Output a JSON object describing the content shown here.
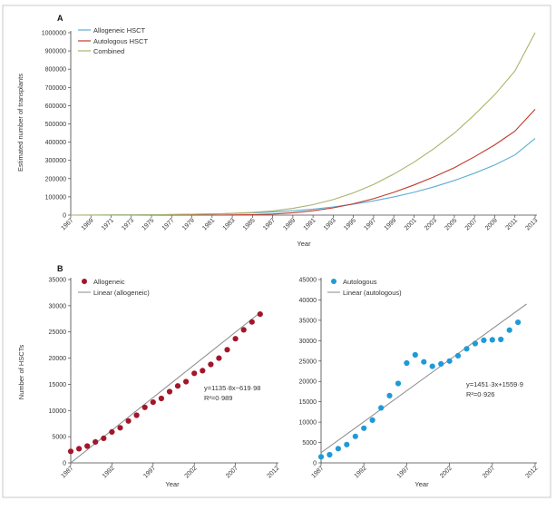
{
  "colors": {
    "allogeneic_line": "#5aaed3",
    "autologous_line": "#c0392b",
    "combined_line": "#a8b36a",
    "allo_points": "#a3162a",
    "auto_points": "#1e9bd7",
    "fit_line": "#888888",
    "axis": "#444444"
  },
  "chart_data": [
    {
      "id": "A",
      "type": "line",
      "panel_label": "A",
      "xlabel": "Year",
      "ylabel": "Estimated number of transplants",
      "xlim": [
        1967,
        2013
      ],
      "ylim": [
        0,
        1000000
      ],
      "xticks": [
        1967,
        1969,
        1971,
        1973,
        1975,
        1977,
        1979,
        1981,
        1983,
        1985,
        1987,
        1989,
        1991,
        1993,
        1995,
        1997,
        1999,
        2001,
        2003,
        2005,
        2007,
        2009,
        2011,
        2013
      ],
      "yticks": [
        0,
        100000,
        200000,
        300000,
        400000,
        500000,
        600000,
        700000,
        800000,
        900000,
        1000000
      ],
      "ytick_labels": [
        "0",
        "100000",
        "200000",
        "300000",
        "400000",
        "500000",
        "600000",
        "700000",
        "800000",
        "900000",
        "1000000"
      ],
      "legend_position": "top-left",
      "x": [
        1967,
        1970,
        1973,
        1976,
        1979,
        1982,
        1985,
        1987,
        1989,
        1991,
        1993,
        1995,
        1997,
        1999,
        2001,
        2003,
        2005,
        2007,
        2009,
        2011,
        2013
      ],
      "series": [
        {
          "name": "Allogeneic HSCT",
          "color_key": "allogeneic_line",
          "values": [
            0,
            500,
            1200,
            2500,
            4500,
            7500,
            12000,
            17000,
            24000,
            33000,
            45000,
            60000,
            78000,
            100000,
            125000,
            155000,
            190000,
            230000,
            275000,
            330000,
            420000
          ]
        },
        {
          "name": "Autologous HSCT",
          "color_key": "autologous_line",
          "values": [
            0,
            0,
            0,
            0,
            100,
            600,
            2500,
            6000,
            13000,
            24000,
            40000,
            62000,
            90000,
            125000,
            165000,
            210000,
            260000,
            320000,
            385000,
            460000,
            580000
          ]
        },
        {
          "name": "Combined",
          "color_key": "combined_line",
          "values": [
            0,
            500,
            1200,
            2500,
            4600,
            8100,
            14500,
            23000,
            37000,
            57000,
            85000,
            122000,
            168000,
            225000,
            290000,
            365000,
            450000,
            550000,
            660000,
            790000,
            1000000
          ]
        }
      ]
    },
    {
      "id": "B-left",
      "type": "scatter",
      "panel_label": "B",
      "xlabel": "Year",
      "ylabel": "Number of HSCTs",
      "xlim": [
        1987,
        2012
      ],
      "ylim": [
        0,
        35000
      ],
      "xticks": [
        1987,
        1992,
        1997,
        2002,
        2007,
        2012
      ],
      "yticks": [
        0,
        5000,
        10000,
        15000,
        20000,
        25000,
        30000,
        35000
      ],
      "ytick_labels": [
        "0",
        "5000",
        "10000",
        "15000",
        "20000",
        "25000",
        "30000",
        "35000"
      ],
      "legend_position": "top-left",
      "series": [
        {
          "name": "Allogeneic",
          "kind": "points",
          "color_key": "allo_points",
          "x": [
            1987,
            1988,
            1989,
            1990,
            1991,
            1992,
            1993,
            1994,
            1995,
            1996,
            1997,
            1998,
            1999,
            2000,
            2001,
            2002,
            2003,
            2004,
            2005,
            2006,
            2007,
            2008,
            2009,
            2010
          ],
          "y": [
            2200,
            2700,
            3200,
            4000,
            4700,
            5900,
            6700,
            8000,
            9100,
            10600,
            11600,
            12300,
            13600,
            14700,
            15500,
            17100,
            17600,
            18800,
            20000,
            21600,
            23700,
            25400,
            26900,
            28400
          ]
        },
        {
          "name": "Linear (allogeneic)",
          "kind": "line",
          "color_key": "fit_line",
          "x": [
            1987,
            2010
          ],
          "y": [
            0,
            28700
          ]
        }
      ],
      "equation": "y=1135·8x−619·98",
      "r_squared": "R²=0·989"
    },
    {
      "id": "B-right",
      "type": "scatter",
      "panel_label": "",
      "xlabel": "Year",
      "ylabel": "",
      "xlim": [
        1987,
        2012
      ],
      "ylim": [
        0,
        45000
      ],
      "xticks": [
        1987,
        1992,
        1997,
        2002,
        2007,
        2012
      ],
      "yticks": [
        0,
        5000,
        10000,
        15000,
        20000,
        25000,
        30000,
        35000,
        40000,
        45000
      ],
      "ytick_labels": [
        "0",
        "5000",
        "10000",
        "15000",
        "20000",
        "25000",
        "30000",
        "35000",
        "40000",
        "45000"
      ],
      "legend_position": "top-left",
      "series": [
        {
          "name": "Autologous",
          "kind": "points",
          "color_key": "auto_points",
          "x": [
            1987,
            1988,
            1989,
            1990,
            1991,
            1992,
            1993,
            1994,
            1995,
            1996,
            1997,
            1998,
            1999,
            2000,
            2001,
            2002,
            2003,
            2004,
            2005,
            2006,
            2007,
            2008,
            2009,
            2010
          ],
          "y": [
            1500,
            2000,
            3500,
            4500,
            6500,
            8500,
            10500,
            13500,
            16500,
            19500,
            24500,
            26500,
            24800,
            23700,
            24300,
            25000,
            26300,
            28000,
            29300,
            30100,
            30200,
            30300,
            32600,
            34500
          ]
        },
        {
          "name": "Linear (autologous)",
          "kind": "line",
          "color_key": "fit_line",
          "x": [
            1987,
            2011
          ],
          "y": [
            2500,
            39000
          ]
        }
      ],
      "equation": "y=1451·3x+1559·9",
      "r_squared": "R²=0·926"
    }
  ]
}
